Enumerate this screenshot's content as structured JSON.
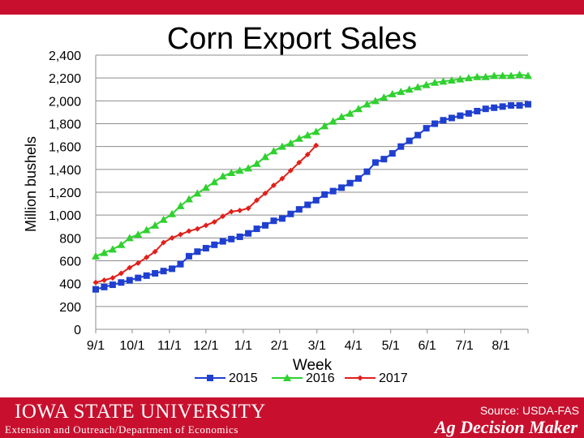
{
  "chart_data": {
    "type": "line",
    "title": "Corn Export Sales",
    "xlabel": "Week",
    "ylabel": "Million bushels",
    "ylim": [
      0,
      2400
    ],
    "yticks": [
      0,
      200,
      400,
      600,
      800,
      1000,
      1200,
      1400,
      1600,
      1800,
      2000,
      2200,
      2400
    ],
    "ytick_labels": [
      "0",
      "200",
      "400",
      "600",
      "800",
      "1,000",
      "1,200",
      "1,400",
      "1,600",
      "1,800",
      "2,000",
      "2,200",
      "2,400"
    ],
    "xtick_labels": [
      "9/1",
      "10/1",
      "11/1",
      "12/1",
      "1/1",
      "2/1",
      "3/1",
      "4/1",
      "5/1",
      "6/1",
      "7/1",
      "8/1"
    ],
    "grid": true,
    "legend_position": "bottom",
    "series": [
      {
        "name": "2015",
        "color": "#1f3fd1",
        "marker": "square",
        "values": [
          350,
          370,
          390,
          410,
          430,
          450,
          470,
          490,
          510,
          530,
          570,
          640,
          680,
          710,
          740,
          770,
          790,
          810,
          840,
          880,
          910,
          950,
          970,
          1010,
          1050,
          1090,
          1130,
          1180,
          1210,
          1240,
          1280,
          1320,
          1380,
          1460,
          1490,
          1540,
          1600,
          1650,
          1700,
          1760,
          1800,
          1830,
          1850,
          1870,
          1890,
          1910,
          1930,
          1940,
          1950,
          1960,
          1960,
          1970
        ]
      },
      {
        "name": "2016",
        "color": "#2fd12f",
        "marker": "triangle",
        "values": [
          640,
          670,
          700,
          740,
          800,
          830,
          870,
          910,
          960,
          1010,
          1080,
          1140,
          1190,
          1240,
          1290,
          1340,
          1370,
          1390,
          1410,
          1450,
          1510,
          1560,
          1600,
          1630,
          1670,
          1700,
          1730,
          1780,
          1820,
          1860,
          1890,
          1930,
          1970,
          2000,
          2030,
          2060,
          2080,
          2100,
          2120,
          2140,
          2160,
          2170,
          2180,
          2190,
          2200,
          2210,
          2210,
          2220,
          2220,
          2220,
          2230,
          2220
        ]
      },
      {
        "name": "2017",
        "color": "#e0201a",
        "marker": "diamond",
        "values": [
          410,
          430,
          450,
          490,
          540,
          580,
          630,
          680,
          760,
          800,
          830,
          860,
          880,
          910,
          940,
          990,
          1030,
          1040,
          1060,
          1130,
          1190,
          1260,
          1320,
          1390,
          1460,
          1530,
          1610
        ]
      }
    ]
  },
  "footer": {
    "university": "IOWA STATE UNIVERSITY",
    "department": "Extension and Outreach/Department of Economics",
    "source": "Source: USDA-FAS",
    "brand": "Ag Decision Maker"
  },
  "colors": {
    "brand_red": "#c8102e"
  }
}
